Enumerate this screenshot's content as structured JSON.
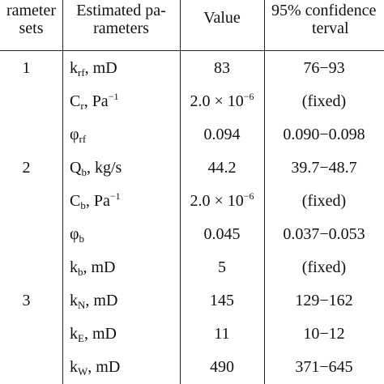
{
  "header": {
    "col1_line1": "rameter",
    "col1_line2": "sets",
    "col2_line1": "Estimated pa-",
    "col2_line2": "rameters",
    "col3": "Value",
    "col4_line1": "95% confidence",
    "col4_line2": "terval"
  },
  "rows": [
    {
      "set": "1",
      "param_main": "k",
      "param_sub": "rf",
      "param_unit": ", mD",
      "value": "83",
      "ci": "76−93"
    },
    {
      "set": "",
      "param_main": "C",
      "param_sub": "r",
      "param_unit": ", Pa",
      "param_unit_sup": "−1",
      "value_base": "2.0 × 10",
      "value_exp": "−6",
      "ci": "(fixed)"
    },
    {
      "set": "",
      "param_main": "φ",
      "param_sub": "rf",
      "param_unit": "",
      "value": "0.094",
      "ci": "0.090−0.098"
    },
    {
      "set": "2",
      "param_main": "Q",
      "param_sub": "b",
      "param_unit": ", kg/s",
      "value": "44.2",
      "ci": "39.7−48.7"
    },
    {
      "set": "",
      "param_main": "C",
      "param_sub": "b",
      "param_unit": ", Pa",
      "param_unit_sup": "−1",
      "value_base": "2.0 × 10",
      "value_exp": "−6",
      "ci": "(fixed)"
    },
    {
      "set": "",
      "param_main": "φ",
      "param_sub": "b",
      "param_unit": "",
      "value": "0.045",
      "ci": "0.037−0.053"
    },
    {
      "set": "",
      "param_main": "k",
      "param_sub": "b",
      "param_unit": ", mD",
      "value": "5",
      "ci": "(fixed)"
    },
    {
      "set": "3",
      "param_main": "k",
      "param_sub": "N",
      "param_unit": ", mD",
      "value": "145",
      "ci": "129−162"
    },
    {
      "set": "",
      "param_main": "k",
      "param_sub": "E",
      "param_unit": ", mD",
      "value": "11",
      "ci": "10−12"
    },
    {
      "set": "",
      "param_main": "k",
      "param_sub": "W",
      "param_unit": ", mD",
      "value": "490",
      "ci": "371−645"
    }
  ]
}
